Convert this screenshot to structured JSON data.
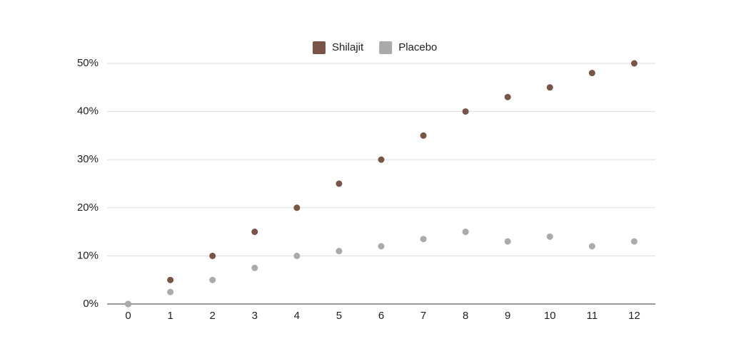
{
  "chart_data": {
    "type": "scatter",
    "x": [
      0,
      1,
      2,
      3,
      4,
      5,
      6,
      7,
      8,
      9,
      10,
      11,
      12
    ],
    "series": [
      {
        "name": "Shilajit",
        "color": "#795548",
        "values": [
          0,
          5,
          10,
          15,
          20,
          25,
          30,
          35,
          40,
          43,
          45,
          48,
          50
        ]
      },
      {
        "name": "Placebo",
        "color": "#aaaaaa",
        "values": [
          0,
          2.5,
          5,
          7.5,
          10,
          11,
          12,
          13.5,
          15,
          13,
          14,
          12,
          13
        ]
      }
    ],
    "xlim": [
      -0.5,
      12.5
    ],
    "xticks": [
      0,
      1,
      2,
      3,
      4,
      5,
      6,
      7,
      8,
      9,
      10,
      11,
      12
    ],
    "ylim": [
      0,
      50
    ],
    "yticks": [
      {
        "value": 0,
        "label": "0%"
      },
      {
        "value": 10,
        "label": "10%"
      },
      {
        "value": 20,
        "label": "20%"
      },
      {
        "value": 30,
        "label": "30%"
      },
      {
        "value": 40,
        "label": "40%"
      },
      {
        "value": 50,
        "label": "50%"
      }
    ],
    "grid": true,
    "legend": "top"
  }
}
